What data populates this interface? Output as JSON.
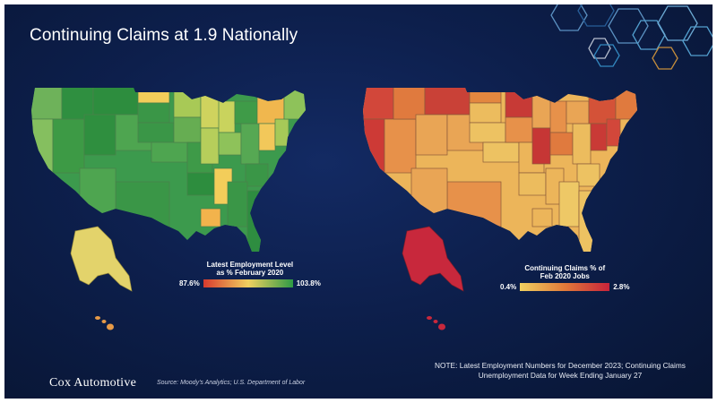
{
  "title": "Continuing Claims at 1.9 Nationally",
  "left_map": {
    "legend_title_line1": "Latest Employment Level",
    "legend_title_line2": "as % February 2020",
    "legend_min": "87.6%",
    "legend_max": "103.8%",
    "color_low": "#d73a2e",
    "color_mid": "#f0d060",
    "color_high": "#2e9a45"
  },
  "right_map": {
    "legend_title_line1": "Continuing Claims % of",
    "legend_title_line2": "Feb 2020 Jobs",
    "legend_min": "0.4%",
    "legend_max": "2.8%",
    "color_low": "#f0d060",
    "color_mid": "#e07a3a",
    "color_high": "#c8233a"
  },
  "note_line1": "NOTE: Latest Employment Numbers for December 2023; Continuing Claims",
  "note_line2": "Unemployment Data for Week Ending January 27",
  "logo_text": "Cox Automotive",
  "source_text": "Source: Moody's Analytics; U.S. Department of Labor",
  "colors": {
    "background": "#0d1f4c",
    "hexagon_accent": "#3a9bd5"
  }
}
